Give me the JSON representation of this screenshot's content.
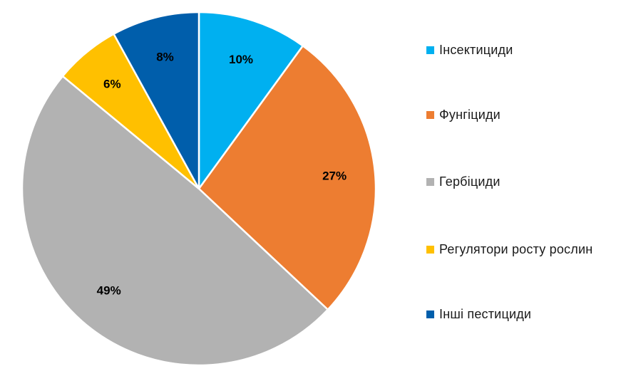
{
  "chart_data": {
    "type": "pie",
    "start_angle_deg": 0,
    "direction": "clockwise",
    "legend_position": "right",
    "slices": [
      {
        "name": "Інсектициди",
        "value": 10,
        "label": "10%",
        "color": "#00b0f0"
      },
      {
        "name": "Фунгіциди",
        "value": 27,
        "label": "27%",
        "color": "#ed7d31"
      },
      {
        "name": "Гербіциди",
        "value": 49,
        "label": "49%",
        "color": "#b2b2b2"
      },
      {
        "name": "Регулятори росту рослин",
        "value": 6,
        "label": "6%",
        "color": "#ffc000"
      },
      {
        "name": "Інші пестициди",
        "value": 8,
        "label": "8%",
        "color": "#005eab"
      }
    ]
  }
}
